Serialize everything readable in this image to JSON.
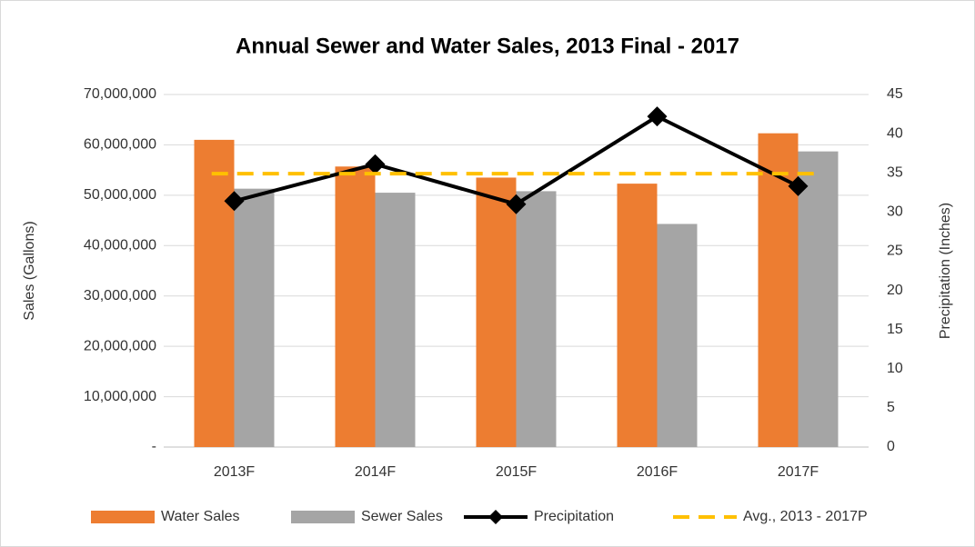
{
  "chart_data": {
    "type": "bar",
    "title": "Annual Sewer and Water Sales, 2013 Final - 2017",
    "ylabel": "Sales (Gallons)",
    "y2label": "Precipitation (Inches)",
    "categories": [
      "2013F",
      "2014F",
      "2015F",
      "2016F",
      "2017F"
    ],
    "series": [
      {
        "name": "Water Sales",
        "color": "#ED7D31",
        "type": "bar",
        "values": [
          61000000,
          55700000,
          53500000,
          52300000,
          62300000
        ]
      },
      {
        "name": "Sewer Sales",
        "color": "#A5A5A5",
        "type": "bar",
        "values": [
          51300000,
          50500000,
          50800000,
          44300000,
          58700000
        ]
      },
      {
        "name": "Precipitation",
        "color": "#000000",
        "type": "line",
        "axis": "y2",
        "values": [
          31.4,
          36.1,
          31.0,
          42.2,
          33.3
        ]
      },
      {
        "name": "Avg., 2013 - 2017P",
        "color": "#FFC000",
        "type": "dashed",
        "axis": "y2",
        "values": [
          34.9,
          34.9,
          34.9,
          34.9,
          34.9
        ]
      }
    ],
    "ylim": [
      0,
      70000000
    ],
    "yticks": [
      {
        "value": 0,
        "label": "-"
      },
      {
        "value": 10000000,
        "label": "10,000,000"
      },
      {
        "value": 20000000,
        "label": "20,000,000"
      },
      {
        "value": 30000000,
        "label": "30,000,000"
      },
      {
        "value": 40000000,
        "label": "40,000,000"
      },
      {
        "value": 50000000,
        "label": "50,000,000"
      },
      {
        "value": 60000000,
        "label": "60,000,000"
      },
      {
        "value": 70000000,
        "label": "70,000,000"
      }
    ],
    "y2lim": [
      0,
      45
    ],
    "y2ticks": [
      0,
      5,
      10,
      15,
      20,
      25,
      30,
      35,
      40,
      45
    ],
    "grid": true,
    "legend": "bottom"
  }
}
